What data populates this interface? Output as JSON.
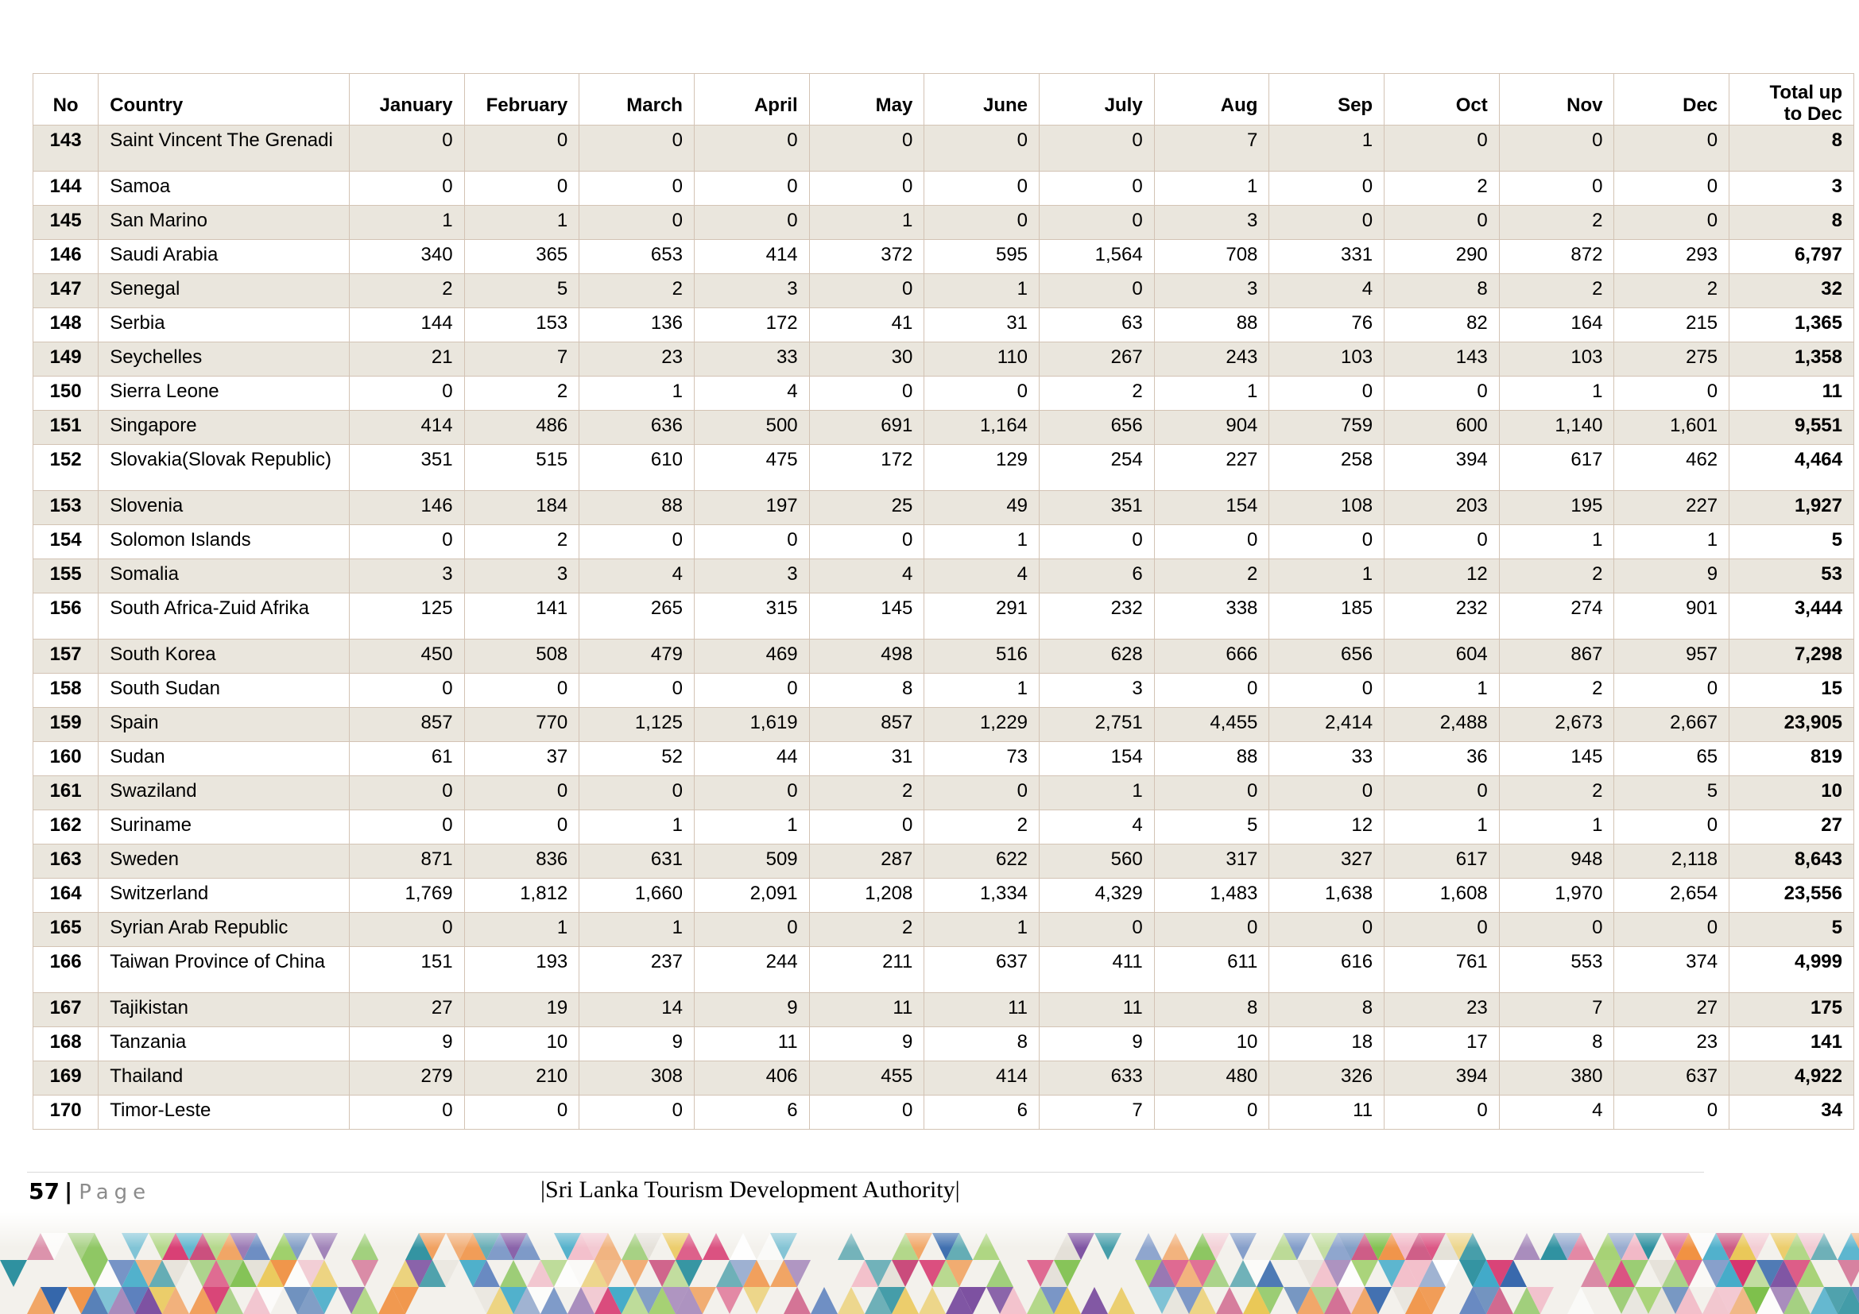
{
  "table": {
    "headers": {
      "no": "No",
      "country": "Country",
      "months": [
        "January",
        "February",
        "March",
        "April",
        "May",
        "June",
        "July",
        "Aug",
        "Sep",
        "Oct",
        "Nov",
        "Dec"
      ],
      "total_line1": "Total up",
      "total_line2": "to Dec"
    },
    "rows": [
      {
        "no": "143",
        "country": "Saint Vincent The Grenadi",
        "values": [
          "0",
          "0",
          "0",
          "0",
          "0",
          "0",
          "0",
          "7",
          "1",
          "0",
          "0",
          "0"
        ],
        "total": "8"
      },
      {
        "no": "144",
        "country": "Samoa",
        "values": [
          "0",
          "0",
          "0",
          "0",
          "0",
          "0",
          "0",
          "1",
          "0",
          "2",
          "0",
          "0"
        ],
        "total": "3"
      },
      {
        "no": "145",
        "country": "San Marino",
        "values": [
          "1",
          "1",
          "0",
          "0",
          "1",
          "0",
          "0",
          "3",
          "0",
          "0",
          "2",
          "0"
        ],
        "total": "8"
      },
      {
        "no": "146",
        "country": "Saudi Arabia",
        "values": [
          "340",
          "365",
          "653",
          "414",
          "372",
          "595",
          "1,564",
          "708",
          "331",
          "290",
          "872",
          "293"
        ],
        "total": "6,797"
      },
      {
        "no": "147",
        "country": "Senegal",
        "values": [
          "2",
          "5",
          "2",
          "3",
          "0",
          "1",
          "0",
          "3",
          "4",
          "8",
          "2",
          "2"
        ],
        "total": "32"
      },
      {
        "no": "148",
        "country": "Serbia",
        "values": [
          "144",
          "153",
          "136",
          "172",
          "41",
          "31",
          "63",
          "88",
          "76",
          "82",
          "164",
          "215"
        ],
        "total": "1,365"
      },
      {
        "no": "149",
        "country": "Seychelles",
        "values": [
          "21",
          "7",
          "23",
          "33",
          "30",
          "110",
          "267",
          "243",
          "103",
          "143",
          "103",
          "275"
        ],
        "total": "1,358"
      },
      {
        "no": "150",
        "country": "Sierra Leone",
        "values": [
          "0",
          "2",
          "1",
          "4",
          "0",
          "0",
          "2",
          "1",
          "0",
          "0",
          "1",
          "0"
        ],
        "total": "11"
      },
      {
        "no": "151",
        "country": "Singapore",
        "values": [
          "414",
          "486",
          "636",
          "500",
          "691",
          "1,164",
          "656",
          "904",
          "759",
          "600",
          "1,140",
          "1,601"
        ],
        "total": "9,551"
      },
      {
        "no": "152",
        "country": "Slovakia(Slovak Republic)",
        "values": [
          "351",
          "515",
          "610",
          "475",
          "172",
          "129",
          "254",
          "227",
          "258",
          "394",
          "617",
          "462"
        ],
        "total": "4,464"
      },
      {
        "no": "153",
        "country": "Slovenia",
        "values": [
          "146",
          "184",
          "88",
          "197",
          "25",
          "49",
          "351",
          "154",
          "108",
          "203",
          "195",
          "227"
        ],
        "total": "1,927"
      },
      {
        "no": "154",
        "country": "Solomon Islands",
        "values": [
          "0",
          "2",
          "0",
          "0",
          "0",
          "1",
          "0",
          "0",
          "0",
          "0",
          "1",
          "1"
        ],
        "total": "5"
      },
      {
        "no": "155",
        "country": "Somalia",
        "values": [
          "3",
          "3",
          "4",
          "3",
          "4",
          "4",
          "6",
          "2",
          "1",
          "12",
          "2",
          "9"
        ],
        "total": "53"
      },
      {
        "no": "156",
        "country": "South Africa-Zuid Afrika",
        "values": [
          "125",
          "141",
          "265",
          "315",
          "145",
          "291",
          "232",
          "338",
          "185",
          "232",
          "274",
          "901"
        ],
        "total": "3,444"
      },
      {
        "no": "157",
        "country": "South Korea",
        "values": [
          "450",
          "508",
          "479",
          "469",
          "498",
          "516",
          "628",
          "666",
          "656",
          "604",
          "867",
          "957"
        ],
        "total": "7,298"
      },
      {
        "no": "158",
        "country": "South Sudan",
        "values": [
          "0",
          "0",
          "0",
          "0",
          "8",
          "1",
          "3",
          "0",
          "0",
          "1",
          "2",
          "0"
        ],
        "total": "15"
      },
      {
        "no": "159",
        "country": "Spain",
        "values": [
          "857",
          "770",
          "1,125",
          "1,619",
          "857",
          "1,229",
          "2,751",
          "4,455",
          "2,414",
          "2,488",
          "2,673",
          "2,667"
        ],
        "total": "23,905"
      },
      {
        "no": "160",
        "country": "Sudan",
        "values": [
          "61",
          "37",
          "52",
          "44",
          "31",
          "73",
          "154",
          "88",
          "33",
          "36",
          "145",
          "65"
        ],
        "total": "819"
      },
      {
        "no": "161",
        "country": "Swaziland",
        "values": [
          "0",
          "0",
          "0",
          "0",
          "2",
          "0",
          "1",
          "0",
          "0",
          "0",
          "2",
          "5"
        ],
        "total": "10"
      },
      {
        "no": "162",
        "country": "Suriname",
        "values": [
          "0",
          "0",
          "1",
          "1",
          "0",
          "2",
          "4",
          "5",
          "12",
          "1",
          "1",
          "0"
        ],
        "total": "27"
      },
      {
        "no": "163",
        "country": "Sweden",
        "values": [
          "871",
          "836",
          "631",
          "509",
          "287",
          "622",
          "560",
          "317",
          "327",
          "617",
          "948",
          "2,118"
        ],
        "total": "8,643"
      },
      {
        "no": "164",
        "country": "Switzerland",
        "values": [
          "1,769",
          "1,812",
          "1,660",
          "2,091",
          "1,208",
          "1,334",
          "4,329",
          "1,483",
          "1,638",
          "1,608",
          "1,970",
          "2,654"
        ],
        "total": "23,556"
      },
      {
        "no": "165",
        "country": "Syrian Arab Republic",
        "values": [
          "0",
          "1",
          "1",
          "0",
          "2",
          "1",
          "0",
          "0",
          "0",
          "0",
          "0",
          "0"
        ],
        "total": "5"
      },
      {
        "no": "166",
        "country": "Taiwan Province of China",
        "values": [
          "151",
          "193",
          "237",
          "244",
          "211",
          "637",
          "411",
          "611",
          "616",
          "761",
          "553",
          "374"
        ],
        "total": "4,999"
      },
      {
        "no": "167",
        "country": "Tajikistan",
        "values": [
          "27",
          "19",
          "14",
          "9",
          "11",
          "11",
          "11",
          "8",
          "8",
          "23",
          "7",
          "27"
        ],
        "total": "175"
      },
      {
        "no": "168",
        "country": "Tanzania",
        "values": [
          "9",
          "10",
          "9",
          "11",
          "9",
          "8",
          "9",
          "10",
          "18",
          "17",
          "8",
          "23"
        ],
        "total": "141"
      },
      {
        "no": "169",
        "country": "Thailand",
        "values": [
          "279",
          "210",
          "308",
          "406",
          "455",
          "414",
          "633",
          "480",
          "326",
          "394",
          "380",
          "637"
        ],
        "total": "4,922"
      },
      {
        "no": "170",
        "country": "Timor-Leste",
        "values": [
          "0",
          "0",
          "0",
          "6",
          "0",
          "6",
          "7",
          "0",
          "11",
          "0",
          "4",
          "0"
        ],
        "total": "34"
      }
    ]
  },
  "footer": {
    "page_number": "57",
    "separator": "|",
    "page_word": "Page",
    "organization": "|Sri Lanka Tourism Development Authority|"
  }
}
